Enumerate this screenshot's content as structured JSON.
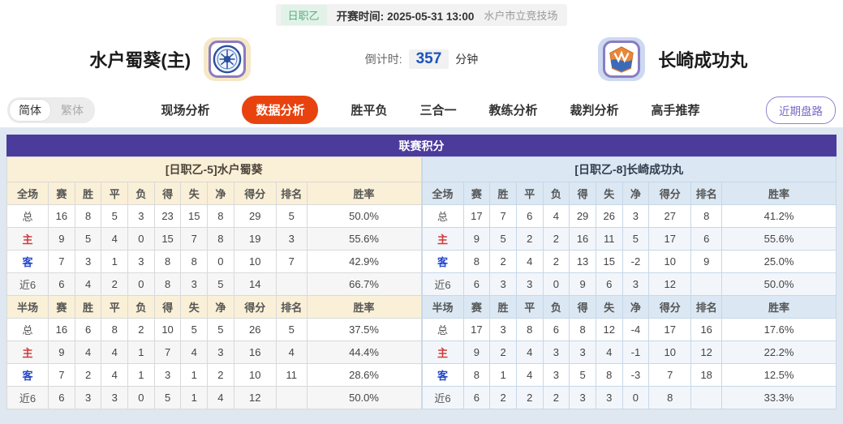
{
  "match_banner": {
    "league": "日职乙",
    "kickoff_label": "开赛时间:",
    "kickoff_time": "2025-05-31 13:00",
    "venue": "水户市立竞技场"
  },
  "teams": {
    "home": {
      "name": "水户蜀葵(主)"
    },
    "away": {
      "name": "长崎成功丸"
    }
  },
  "countdown": {
    "label": "倒计时:",
    "value": "357",
    "unit": "分钟"
  },
  "lang_toggle": {
    "simplified": "简体",
    "traditional": "繁体"
  },
  "nav": {
    "tabs": [
      {
        "label": "现场分析",
        "active": false
      },
      {
        "label": "数据分析",
        "active": true
      },
      {
        "label": "胜平负",
        "active": false
      },
      {
        "label": "三合一",
        "active": false
      },
      {
        "label": "教练分析",
        "active": false
      },
      {
        "label": "裁判分析",
        "active": false
      },
      {
        "label": "高手推荐",
        "active": false
      }
    ],
    "recent_trends_label": "近期盘路"
  },
  "league_table": {
    "title": "联赛积分",
    "columns_full": [
      "全场",
      "赛",
      "胜",
      "平",
      "负",
      "得",
      "失",
      "净",
      "得分",
      "排名",
      "胜率"
    ],
    "columns_half": [
      "半场",
      "赛",
      "胜",
      "平",
      "负",
      "得",
      "失",
      "净",
      "得分",
      "排名",
      "胜率"
    ],
    "sides": [
      {
        "side": "home",
        "team_header": "[日职乙-5]水户蜀葵",
        "full": [
          {
            "label": "总",
            "type": "total",
            "cells": [
              "16",
              "8",
              "5",
              "3",
              "23",
              "15",
              "8",
              "29",
              "5",
              "50.0%"
            ]
          },
          {
            "label": "主",
            "type": "home",
            "cells": [
              "9",
              "5",
              "4",
              "0",
              "15",
              "7",
              "8",
              "19",
              "3",
              "55.6%"
            ]
          },
          {
            "label": "客",
            "type": "away",
            "cells": [
              "7",
              "3",
              "1",
              "3",
              "8",
              "8",
              "0",
              "10",
              "7",
              "42.9%"
            ]
          },
          {
            "label": "近6",
            "type": "recent",
            "cells": [
              "6",
              "4",
              "2",
              "0",
              "8",
              "3",
              "5",
              "14",
              "",
              "66.7%"
            ]
          }
        ],
        "half": [
          {
            "label": "总",
            "type": "total",
            "cells": [
              "16",
              "6",
              "8",
              "2",
              "10",
              "5",
              "5",
              "26",
              "5",
              "37.5%"
            ]
          },
          {
            "label": "主",
            "type": "home",
            "cells": [
              "9",
              "4",
              "4",
              "1",
              "7",
              "4",
              "3",
              "16",
              "4",
              "44.4%"
            ]
          },
          {
            "label": "客",
            "type": "away",
            "cells": [
              "7",
              "2",
              "4",
              "1",
              "3",
              "1",
              "2",
              "10",
              "11",
              "28.6%"
            ]
          },
          {
            "label": "近6",
            "type": "recent",
            "cells": [
              "6",
              "3",
              "3",
              "0",
              "5",
              "1",
              "4",
              "12",
              "",
              "50.0%"
            ]
          }
        ]
      },
      {
        "side": "away",
        "team_header": "[日职乙-8]长崎成功丸",
        "full": [
          {
            "label": "总",
            "type": "total",
            "cells": [
              "17",
              "7",
              "6",
              "4",
              "29",
              "26",
              "3",
              "27",
              "8",
              "41.2%"
            ]
          },
          {
            "label": "主",
            "type": "home",
            "cells": [
              "9",
              "5",
              "2",
              "2",
              "16",
              "11",
              "5",
              "17",
              "6",
              "55.6%"
            ]
          },
          {
            "label": "客",
            "type": "away",
            "cells": [
              "8",
              "2",
              "4",
              "2",
              "13",
              "15",
              "-2",
              "10",
              "9",
              "25.0%"
            ]
          },
          {
            "label": "近6",
            "type": "recent",
            "cells": [
              "6",
              "3",
              "3",
              "0",
              "9",
              "6",
              "3",
              "12",
              "",
              "50.0%"
            ]
          }
        ],
        "half": [
          {
            "label": "总",
            "type": "total",
            "cells": [
              "17",
              "3",
              "8",
              "6",
              "8",
              "12",
              "-4",
              "17",
              "16",
              "17.6%"
            ]
          },
          {
            "label": "主",
            "type": "home",
            "cells": [
              "9",
              "2",
              "4",
              "3",
              "3",
              "4",
              "-1",
              "10",
              "12",
              "22.2%"
            ]
          },
          {
            "label": "客",
            "type": "away",
            "cells": [
              "8",
              "1",
              "4",
              "3",
              "5",
              "8",
              "-3",
              "7",
              "18",
              "12.5%"
            ]
          },
          {
            "label": "近6",
            "type": "recent",
            "cells": [
              "6",
              "2",
              "2",
              "2",
              "3",
              "3",
              "0",
              "8",
              "",
              "33.3%"
            ]
          }
        ]
      }
    ]
  },
  "colors": {
    "title_bar": "#4b3c9c",
    "active_tab": "#e8430e",
    "home_header_bg": "#faf0d8",
    "away_header_bg": "#dbe8f3",
    "league_badge_text": "#55ad80",
    "countdown_value": "#1b52be",
    "home_row_label": "#d23b3b",
    "away_row_label": "#2247c8",
    "recent_pill": "#7b68c8"
  }
}
